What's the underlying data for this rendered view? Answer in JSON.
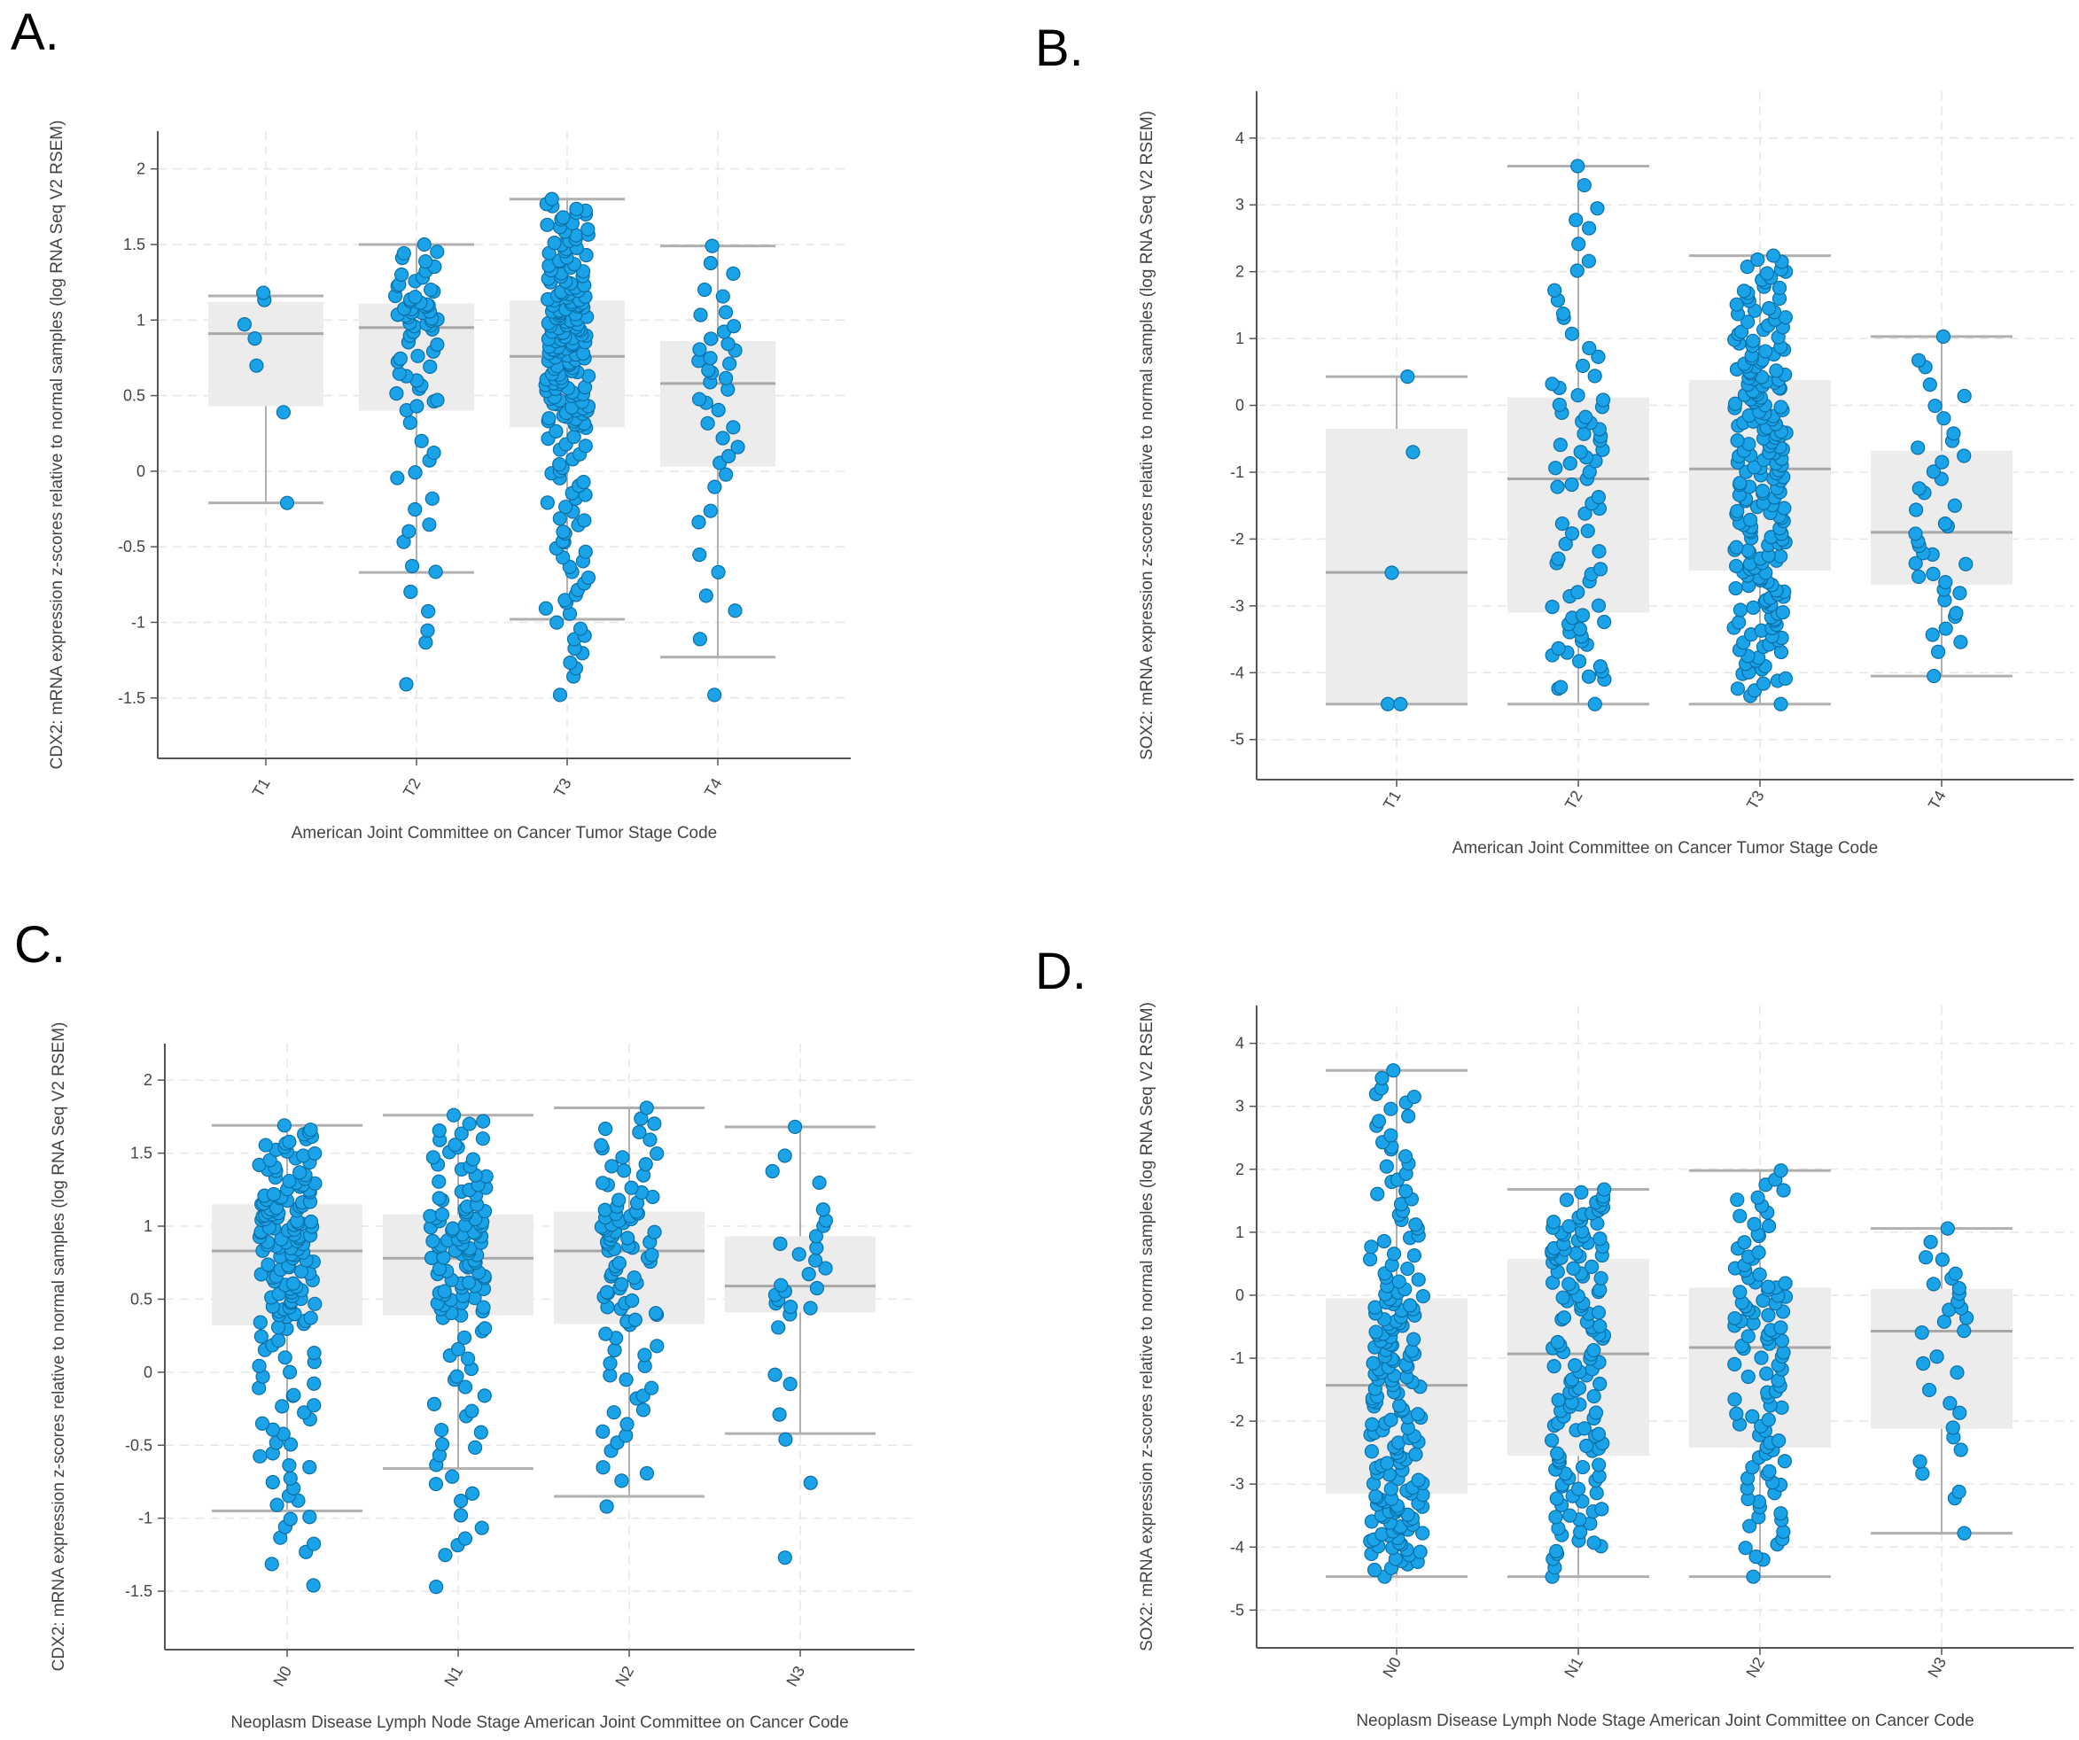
{
  "panel_labels": [
    "A.",
    "B.",
    "C.",
    "D."
  ],
  "colors": {
    "point": "#1aa3e8",
    "point_stroke": "#0b6fa6",
    "box_fill": "#ececec",
    "median": "#a8a8a8",
    "whisker": "#b0b0b0",
    "grid": "#e6e6e6",
    "axis": "#555555"
  },
  "chart_data": [
    {
      "panel": "A.",
      "type": "box",
      "ylabel": "CDX2: mRNA expression z-scores relative to normal samples (log RNA Seq V2 RSEM)",
      "xlabel": "American Joint Committee on Cancer Tumor Stage Code",
      "categories": [
        "T1",
        "T2",
        "T3",
        "T4"
      ],
      "ylim": [
        -1.9,
        2.25
      ],
      "yticks": [
        -1.5,
        -1,
        -0.5,
        0,
        0.5,
        1,
        1.5,
        2
      ],
      "ytick_labels": [
        "-1.5",
        "-1",
        "-0.5",
        "0",
        "0.5",
        "1",
        "1.5",
        "2"
      ],
      "boxes": [
        {
          "category": "T1",
          "q1": 0.43,
          "median": 0.91,
          "q3": 1.12,
          "whisker_low": -0.21,
          "whisker_high": 1.16,
          "n": 7,
          "points_min": -0.21,
          "points_max": 1.18
        },
        {
          "category": "T2",
          "q1": 0.4,
          "median": 0.95,
          "q3": 1.11,
          "whisker_low": -0.67,
          "whisker_high": 1.5,
          "n": 75,
          "points_min": -1.41,
          "points_max": 1.5
        },
        {
          "category": "T3",
          "q1": 0.29,
          "median": 0.76,
          "q3": 1.13,
          "whisker_low": -0.98,
          "whisker_high": 1.8,
          "n": 210,
          "points_min": -1.48,
          "points_max": 1.8
        },
        {
          "category": "T4",
          "q1": 0.03,
          "median": 0.58,
          "q3": 0.86,
          "whisker_low": -1.23,
          "whisker_high": 1.49,
          "n": 40,
          "points_min": -1.48,
          "points_max": 1.49
        }
      ]
    },
    {
      "panel": "B.",
      "type": "box",
      "ylabel": "SOX2: mRNA expression z-scores relative to normal samples (log RNA Seq V2 RSEM)",
      "xlabel": "American Joint Committee on Cancer Tumor Stage Code",
      "categories": [
        "T1",
        "T2",
        "T3",
        "T4"
      ],
      "ylim": [
        -5.6,
        4.7
      ],
      "yticks": [
        -5,
        -4,
        -3,
        -2,
        -1,
        0,
        1,
        2,
        3,
        4
      ],
      "ytick_labels": [
        "-5",
        "-4",
        "-3",
        "-2",
        "-1",
        "0",
        "1",
        "2",
        "3",
        "4"
      ],
      "boxes": [
        {
          "category": "T1",
          "q1": -4.47,
          "median": -2.5,
          "q3": -0.35,
          "whisker_low": -4.47,
          "whisker_high": 0.43,
          "n": 5,
          "points_min": -4.47,
          "points_max": 0.43
        },
        {
          "category": "T2",
          "q1": -3.1,
          "median": -1.1,
          "q3": 0.12,
          "whisker_low": -4.47,
          "whisker_high": 3.58,
          "n": 80,
          "points_min": -4.47,
          "points_max": 3.58
        },
        {
          "category": "T3",
          "q1": -2.47,
          "median": -0.95,
          "q3": 0.38,
          "whisker_low": -4.47,
          "whisker_high": 2.24,
          "n": 220,
          "points_min": -4.47,
          "points_max": 2.24
        },
        {
          "category": "T4",
          "q1": -2.68,
          "median": -1.9,
          "q3": -0.68,
          "whisker_low": -4.05,
          "whisker_high": 1.03,
          "n": 40,
          "points_min": -4.05,
          "points_max": 1.03
        }
      ]
    },
    {
      "panel": "C.",
      "type": "box",
      "ylabel": "CDX2: mRNA expression z-scores relative to normal samples (log RNA Seq V2 RSEM)",
      "xlabel": "Neoplasm Disease Lymph Node Stage American Joint Committee on Cancer Code",
      "categories": [
        "N0",
        "N1",
        "N2",
        "N3"
      ],
      "ylim": [
        -1.9,
        2.25
      ],
      "yticks": [
        -1.5,
        -1,
        -0.5,
        0,
        0.5,
        1,
        1.5,
        2
      ],
      "ytick_labels": [
        "-1.5",
        "-1",
        "-0.5",
        "0",
        "0.5",
        "1",
        "1.5",
        "2"
      ],
      "boxes": [
        {
          "category": "N0",
          "q1": 0.32,
          "median": 0.83,
          "q3": 1.15,
          "whisker_low": -0.95,
          "whisker_high": 1.69,
          "n": 170,
          "points_min": -1.46,
          "points_max": 1.69
        },
        {
          "category": "N1",
          "q1": 0.39,
          "median": 0.78,
          "q3": 1.08,
          "whisker_low": -0.66,
          "whisker_high": 1.76,
          "n": 125,
          "points_min": -1.47,
          "points_max": 1.76
        },
        {
          "category": "N2",
          "q1": 0.33,
          "median": 0.83,
          "q3": 1.1,
          "whisker_low": -0.85,
          "whisker_high": 1.81,
          "n": 95,
          "points_min": -0.92,
          "points_max": 1.81
        },
        {
          "category": "N3",
          "q1": 0.41,
          "median": 0.59,
          "q3": 0.93,
          "whisker_low": -0.42,
          "whisker_high": 1.68,
          "n": 30,
          "points_min": -1.27,
          "points_max": 1.68
        }
      ]
    },
    {
      "panel": "D.",
      "type": "box",
      "ylabel": "SOX2: mRNA expression z-scores relative to normal samples (log RNA Seq V2 RSEM)",
      "xlabel": "Neoplasm Disease Lymph Node Stage American Joint Committee on Cancer Code",
      "categories": [
        "N0",
        "N1",
        "N2",
        "N3"
      ],
      "ylim": [
        -5.6,
        4.6
      ],
      "yticks": [
        -5,
        -4,
        -3,
        -2,
        -1,
        0,
        1,
        2,
        3,
        4
      ],
      "ytick_labels": [
        "-5",
        "-4",
        "-3",
        "-2",
        "-1",
        "0",
        "1",
        "2",
        "3",
        "4"
      ],
      "boxes": [
        {
          "category": "N0",
          "q1": -3.15,
          "median": -1.43,
          "q3": -0.05,
          "whisker_low": -4.47,
          "whisker_high": 3.57,
          "n": 190,
          "points_min": -4.47,
          "points_max": 3.57
        },
        {
          "category": "N1",
          "q1": -2.55,
          "median": -0.93,
          "q3": 0.58,
          "whisker_low": -4.47,
          "whisker_high": 1.68,
          "n": 140,
          "points_min": -4.47,
          "points_max": 1.68
        },
        {
          "category": "N2",
          "q1": -2.42,
          "median": -0.83,
          "q3": 0.12,
          "whisker_low": -4.47,
          "whisker_high": 1.98,
          "n": 105,
          "points_min": -4.47,
          "points_max": 1.98
        },
        {
          "category": "N3",
          "q1": -2.12,
          "median": -0.57,
          "q3": 0.1,
          "whisker_low": -3.78,
          "whisker_high": 1.06,
          "n": 30,
          "points_min": -3.78,
          "points_max": 1.06
        }
      ]
    }
  ]
}
